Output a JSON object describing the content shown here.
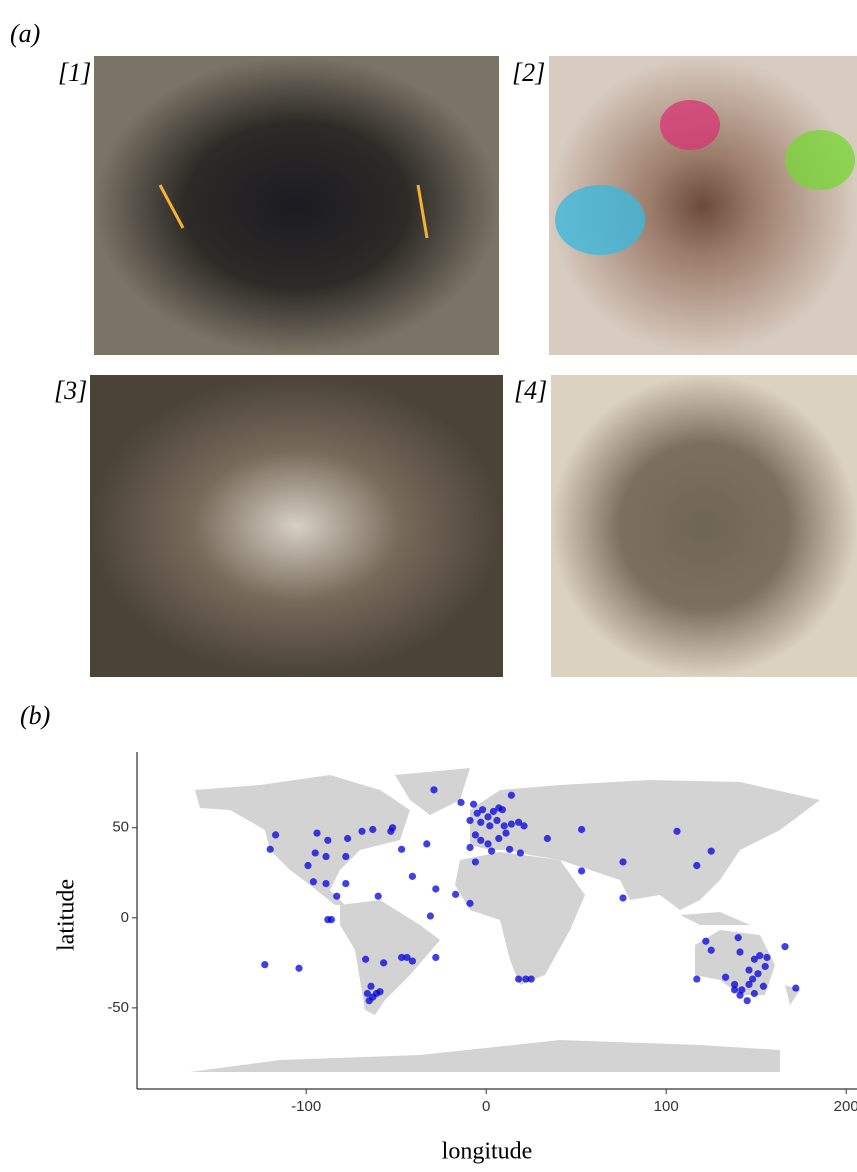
{
  "panel_a": {
    "label": "(a)",
    "photos": [
      {
        "label": "[1]"
      },
      {
        "label": "[2]"
      },
      {
        "label": "[3]"
      },
      {
        "label": "[4]"
      }
    ]
  },
  "chart_data": {
    "type": "scatter",
    "label": "(b)",
    "x_label": "longitude",
    "y_label": "latitude",
    "color": "#0000dd",
    "xlim": [
      -194,
      206
    ],
    "ylim": [
      -95,
      92
    ],
    "xticks": [
      -100,
      0,
      100,
      200
    ],
    "yticks": [
      -50,
      0,
      50
    ],
    "x": [
      -117,
      -120,
      -94,
      -88,
      -77,
      -69,
      -63,
      -53,
      -52,
      -99,
      -95,
      -89,
      -96,
      -89,
      -78,
      -78,
      -83,
      -88,
      -86,
      -60,
      -41,
      -28,
      -31,
      -47,
      -33,
      -14,
      -29,
      -7,
      -9,
      -5,
      -2,
      1,
      4,
      7,
      -3,
      2,
      6,
      10,
      14,
      18,
      21,
      14,
      9,
      -6,
      -3,
      -9,
      1,
      7,
      11,
      13,
      3,
      -6,
      34,
      53,
      53,
      76,
      76,
      -17,
      -9,
      19,
      106,
      125,
      117,
      -57,
      -47,
      -44,
      -41,
      -28,
      -67,
      -64,
      -59,
      -65,
      -63,
      -61,
      -66,
      -123,
      -104,
      18,
      22,
      25,
      122,
      125,
      117,
      140,
      141,
      133,
      138,
      142,
      146,
      148,
      151,
      155,
      152,
      156,
      149,
      145,
      141,
      138,
      154,
      149,
      166,
      172,
      146
    ],
    "values": [
      46,
      38,
      47,
      43,
      44,
      48,
      49,
      48,
      50,
      29,
      36,
      34,
      20,
      19,
      34,
      19,
      12,
      -1,
      -1,
      12,
      23,
      16,
      1,
      38,
      41,
      64,
      71,
      63,
      54,
      58,
      60,
      56,
      59,
      61,
      53,
      51,
      54,
      51,
      52,
      53,
      51,
      68,
      60,
      46,
      43,
      39,
      41,
      44,
      47,
      38,
      37,
      31,
      44,
      49,
      26,
      31,
      11,
      13,
      8,
      36,
      48,
      37,
      29,
      -25,
      -22,
      -22,
      -24,
      -22,
      -23,
      -38,
      -41,
      -46,
      -44,
      -42,
      -42,
      -26,
      -28,
      -34,
      -34,
      -34,
      -13,
      -18,
      -34,
      -11,
      -19,
      -33,
      -37,
      -40,
      -37,
      -34,
      -31,
      -27,
      -21,
      -22,
      -42,
      -46,
      -43,
      -40,
      -38,
      -23,
      -16,
      -39,
      -29
    ]
  }
}
